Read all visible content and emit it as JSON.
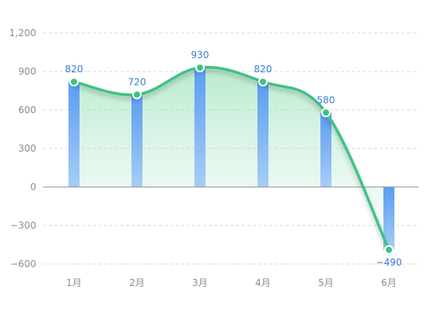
{
  "chart_data": {
    "type": "bar",
    "categories": [
      "1月",
      "2月",
      "3月",
      "4月",
      "5月",
      "6月"
    ],
    "values": [
      820,
      720,
      930,
      820,
      580,
      -490
    ],
    "value_labels": [
      "820",
      "720",
      "930",
      "820",
      "580",
      "−490"
    ],
    "y_ticks": [
      1200,
      900,
      600,
      300,
      0,
      -300,
      -600
    ],
    "y_tick_labels": [
      "1,200",
      "900",
      "600",
      "300",
      "0",
      "−300",
      "−600"
    ],
    "ylim": [
      -600,
      1200
    ],
    "grid": true,
    "overlay": "smooth line with green gradient area through the same values",
    "colors": {
      "bar_top": "#5b9cf0",
      "bar_bottom": "#a7cdf7",
      "line": "#3cc382",
      "area_top": "#7fd9a8",
      "area_bottom": "#e8f8ef",
      "grid": "#d9d9d9",
      "axis": "#8c8c8c",
      "label": "#3a7bd5"
    }
  }
}
